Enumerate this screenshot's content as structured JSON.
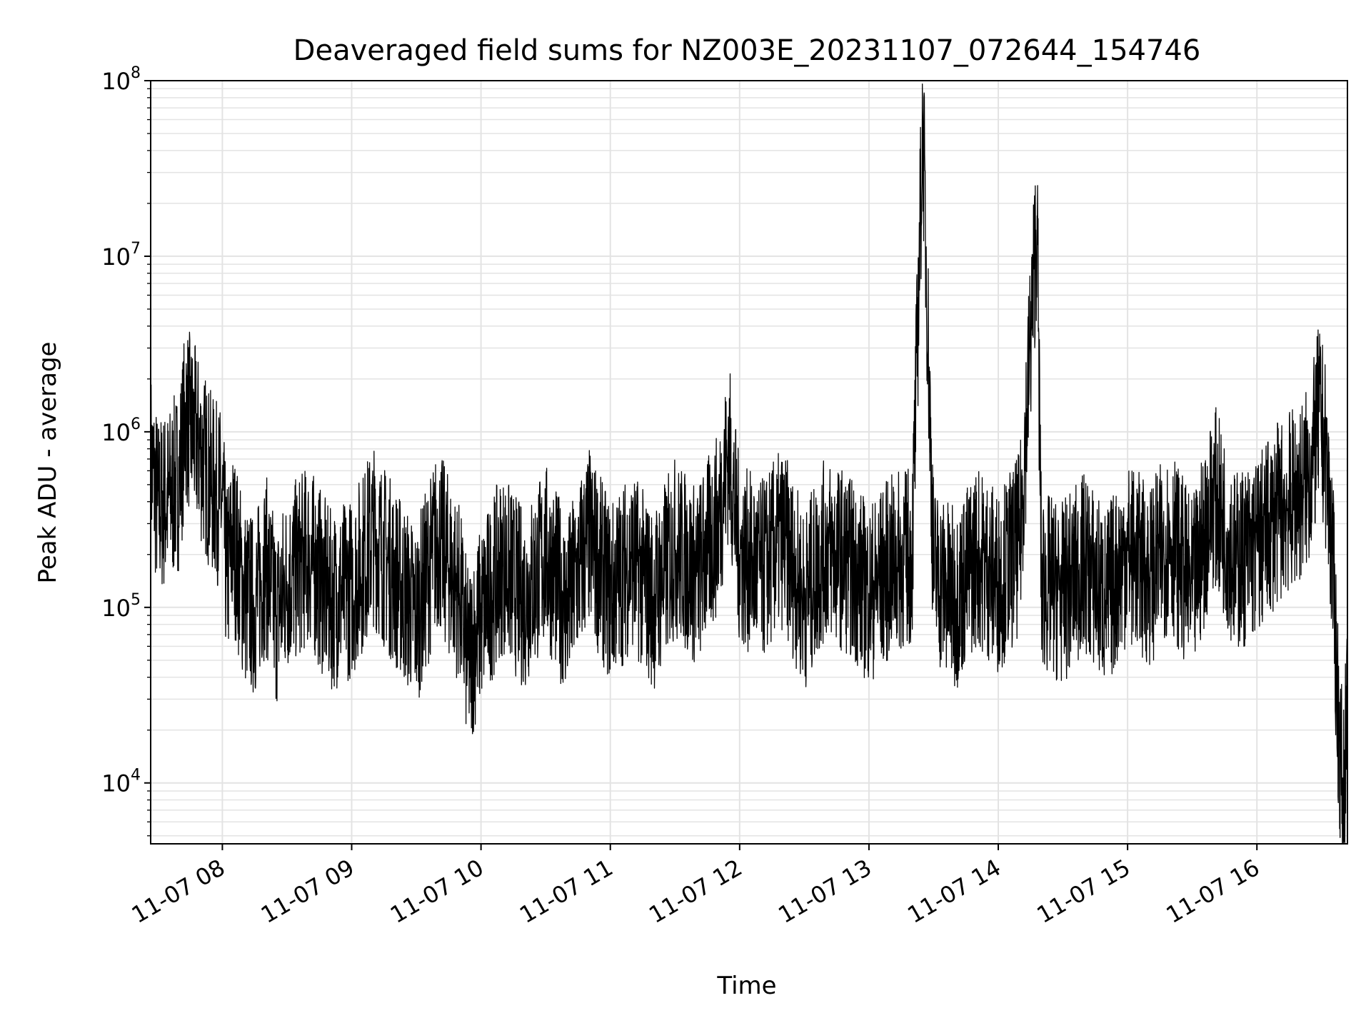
{
  "chart_data": {
    "type": "line",
    "title": "Deaveraged field sums for NZ003E_20231107_072644_154746",
    "xlabel": "Time",
    "ylabel": "Peak ADU - average",
    "yscale": "log",
    "xlim": [
      "11-07 07:26:44",
      "11-07 16:42:00"
    ],
    "ylim": [
      4500,
      100000000
    ],
    "x_ticks": [
      "11-07 08",
      "11-07 09",
      "11-07 10",
      "11-07 11",
      "11-07 12",
      "11-07 13",
      "11-07 14",
      "11-07 15",
      "11-07 16"
    ],
    "y_ticks": [
      {
        "base": "10",
        "exp": "4",
        "value": 10000
      },
      {
        "base": "10",
        "exp": "5",
        "value": 100000
      },
      {
        "base": "10",
        "exp": "6",
        "value": 1000000
      },
      {
        "base": "10",
        "exp": "7",
        "value": 10000000
      },
      {
        "base": "10",
        "exp": "8",
        "value": 100000000
      }
    ],
    "grid": true,
    "legend": "none",
    "line_color": "#000000",
    "series": [
      {
        "x": [
          "11-07 07:26:44",
          "11-07 07:30",
          "11-07 07:35",
          "11-07 07:40",
          "11-07 07:43",
          "11-07 07:45",
          "11-07 07:48",
          "11-07 07:52",
          "11-07 07:55",
          "11-07 08:00",
          "11-07 08:02",
          "11-07 08:05",
          "11-07 08:10",
          "11-07 08:15",
          "11-07 08:20",
          "11-07 08:25",
          "11-07 08:30",
          "11-07 08:40",
          "11-07 08:50",
          "11-07 09:00",
          "11-07 09:10",
          "11-07 09:20",
          "11-07 09:30",
          "11-07 09:40",
          "11-07 09:50",
          "11-07 09:54",
          "11-07 10:00",
          "11-07 10:10",
          "11-07 10:20",
          "11-07 10:30",
          "11-07 10:40",
          "11-07 10:50",
          "11-07 11:00",
          "11-07 11:10",
          "11-07 11:20",
          "11-07 11:30",
          "11-07 11:40",
          "11-07 11:50",
          "11-07 11:55",
          "11-07 12:00",
          "11-07 12:10",
          "11-07 12:20",
          "11-07 12:30",
          "11-07 12:40",
          "11-07 12:50",
          "11-07 13:00",
          "11-07 13:10",
          "11-07 13:20",
          "11-07 13:25",
          "11-07 13:30",
          "11-07 13:40",
          "11-07 13:50",
          "11-07 14:00",
          "11-07 14:10",
          "11-07 14:18",
          "11-07 14:20",
          "11-07 14:30",
          "11-07 14:40",
          "11-07 14:50",
          "11-07 15:00",
          "11-07 15:10",
          "11-07 15:20",
          "11-07 15:30",
          "11-07 15:40",
          "11-07 15:50",
          "11-07 16:00",
          "11-07 16:10",
          "11-07 16:20",
          "11-07 16:25",
          "11-07 16:29",
          "11-07 16:32",
          "11-07 16:35",
          "11-07 16:38",
          "11-07 16:40",
          "11-07 16:42"
        ],
        "y": [
          700000,
          380000,
          420000,
          550000,
          1300000,
          1100000,
          900000,
          650000,
          500000,
          400000,
          150000,
          250000,
          120000,
          100000,
          180000,
          90000,
          140000,
          200000,
          110000,
          130000,
          260000,
          150000,
          90000,
          250000,
          120000,
          50000,
          90000,
          180000,
          110000,
          200000,
          100000,
          250000,
          120000,
          190000,
          110000,
          220000,
          150000,
          300000,
          800000,
          200000,
          160000,
          250000,
          110000,
          220000,
          180000,
          120000,
          170000,
          200000,
          60000000,
          160000,
          110000,
          200000,
          140000,
          230000,
          17000000,
          140000,
          120000,
          180000,
          110000,
          210000,
          150000,
          250000,
          120000,
          450000,
          180000,
          220000,
          350000,
          450000,
          600000,
          1300000,
          700000,
          200000,
          20000,
          8000,
          25000
        ]
      }
    ]
  }
}
